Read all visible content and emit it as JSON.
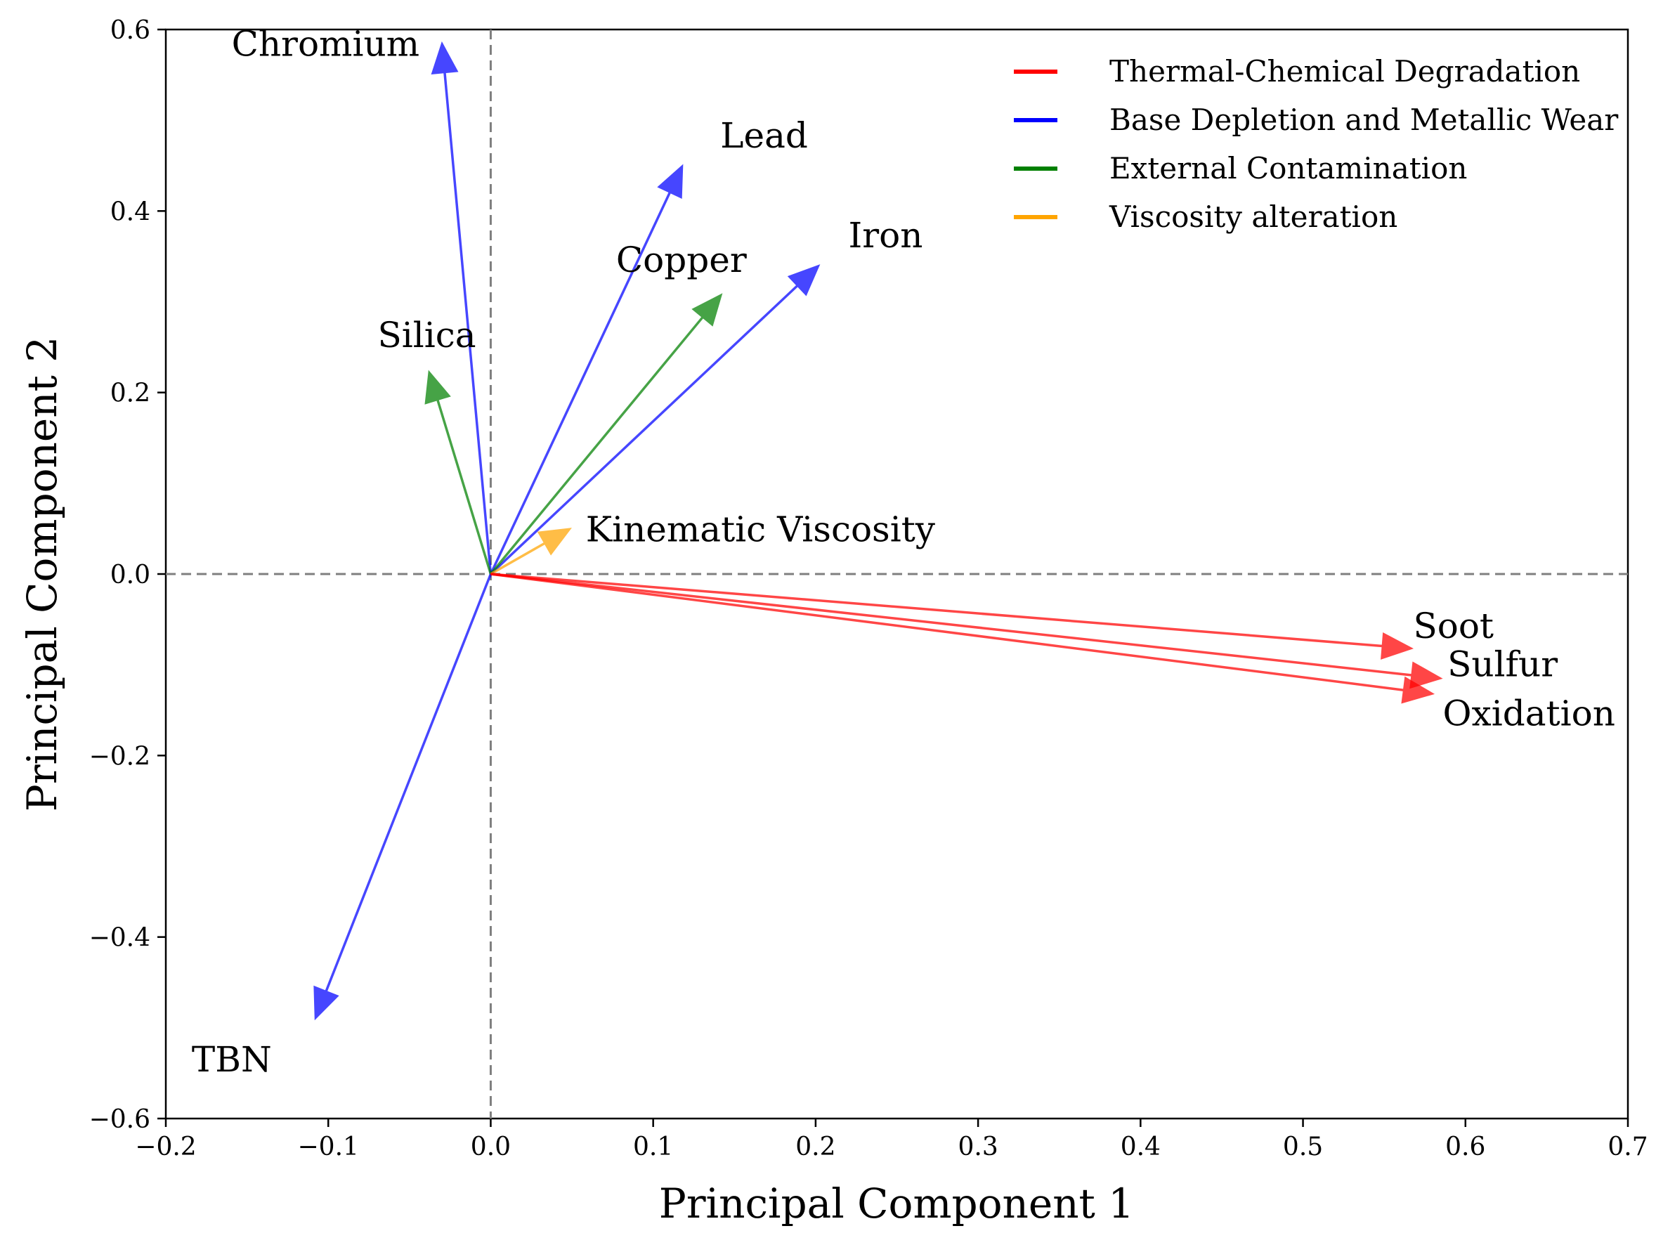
{
  "chart_data": {
    "type": "biplot",
    "title": "",
    "xlabel": "Principal Component 1",
    "ylabel": "Principal Component 2",
    "xlim": [
      -0.2,
      0.7
    ],
    "ylim": [
      -0.6,
      0.6
    ],
    "xticks": [
      -0.2,
      -0.1,
      0.0,
      0.1,
      0.2,
      0.3,
      0.4,
      0.5,
      0.6,
      0.7
    ],
    "yticks": [
      -0.6,
      -0.4,
      -0.2,
      0.0,
      0.2,
      0.4,
      0.6
    ],
    "xtick_labels": [
      "−0.2",
      "−0.1",
      "0.0",
      "0.1",
      "0.2",
      "0.3",
      "0.4",
      "0.5",
      "0.6",
      "0.7"
    ],
    "ytick_labels": [
      "−0.6",
      "−0.4",
      "−0.2",
      "0.0",
      "0.2",
      "0.4",
      "0.6"
    ],
    "reference_lines": [
      {
        "axis": "x",
        "value": 0
      },
      {
        "axis": "y",
        "value": 0
      }
    ],
    "groups": [
      {
        "name": "Thermal-Chemical Degradation",
        "color": "#ff0000"
      },
      {
        "name": "Base Depletion and Metallic Wear",
        "color": "#0000ff"
      },
      {
        "name": "External Contamination",
        "color": "#008000"
      },
      {
        "name": "Viscosity alteration",
        "color": "#ffa500"
      }
    ],
    "vectors": [
      {
        "name": "Chromium",
        "x": -0.03,
        "y": 0.585,
        "group": 1
      },
      {
        "name": "Lead",
        "x": 0.118,
        "y": 0.45,
        "group": 1
      },
      {
        "name": "Iron",
        "x": 0.202,
        "y": 0.34,
        "group": 1
      },
      {
        "name": "TBN",
        "x": -0.108,
        "y": -0.49,
        "group": 1
      },
      {
        "name": "Copper",
        "x": 0.142,
        "y": 0.308,
        "group": 2
      },
      {
        "name": "Silica",
        "x": -0.038,
        "y": 0.223,
        "group": 2
      },
      {
        "name": "Kinematic Viscosity",
        "x": 0.049,
        "y": 0.05,
        "group": 3
      },
      {
        "name": "Soot",
        "x": 0.567,
        "y": -0.082,
        "group": 0
      },
      {
        "name": "Sulfur",
        "x": 0.585,
        "y": -0.115,
        "group": 0
      },
      {
        "name": "Oxidation",
        "x": 0.58,
        "y": -0.132,
        "group": 0
      }
    ],
    "legend_position": "top-right"
  }
}
